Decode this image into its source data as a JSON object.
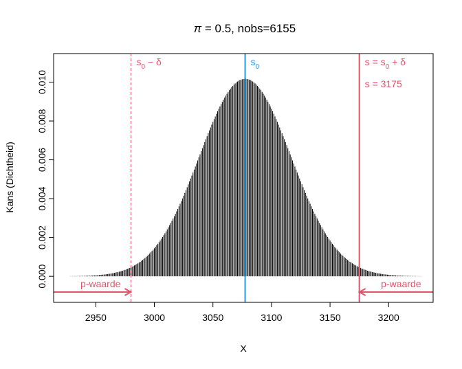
{
  "chart_data": {
    "type": "bar",
    "title_pi": "π",
    "title_rest": " = 0.5, nobs=6155",
    "xlabel": "X",
    "ylabel": "Kans (Dichtheid)",
    "xlim": [
      2914,
      3238
    ],
    "ylim": [
      -0.00134,
      0.01147
    ],
    "x_ticks": [
      2950,
      3000,
      3050,
      3100,
      3150,
      3200
    ],
    "y_ticks": [
      "0.000",
      "0.002",
      "0.004",
      "0.006",
      "0.008",
      "0.010"
    ],
    "y_tick_values": [
      0.0,
      0.002,
      0.004,
      0.006,
      0.008,
      0.01
    ],
    "distribution": {
      "family": "binomial",
      "n": 6155,
      "p": 0.5,
      "x_from": 2928,
      "x_to": 3228
    },
    "vlines": [
      {
        "x": 3077.5,
        "color": "#2297E6",
        "style": "solid",
        "label_main": "s",
        "label_sub": "0",
        "label_tail": ""
      },
      {
        "x": 2980,
        "color": "#DF536B",
        "style": "dashed",
        "label_main": "s",
        "label_sub": "0",
        "label_tail": " − δ"
      },
      {
        "x": 3175,
        "color": "#DF536B",
        "style": "solid",
        "label_main": "s = s",
        "label_sub": "0",
        "label_tail": " + δ"
      }
    ],
    "annotations": [
      {
        "text": "s = 3175",
        "color": "#DF536B"
      }
    ],
    "pvalue_regions": [
      {
        "label": "p-waarde",
        "side": "left",
        "from_x": 2914,
        "to_x": 2980,
        "color": "#DF536B"
      },
      {
        "label": "p-waarde",
        "side": "right",
        "from_x": 3238,
        "to_x": 3175,
        "color": "#DF536B"
      }
    ],
    "bar_color": "#000000"
  }
}
